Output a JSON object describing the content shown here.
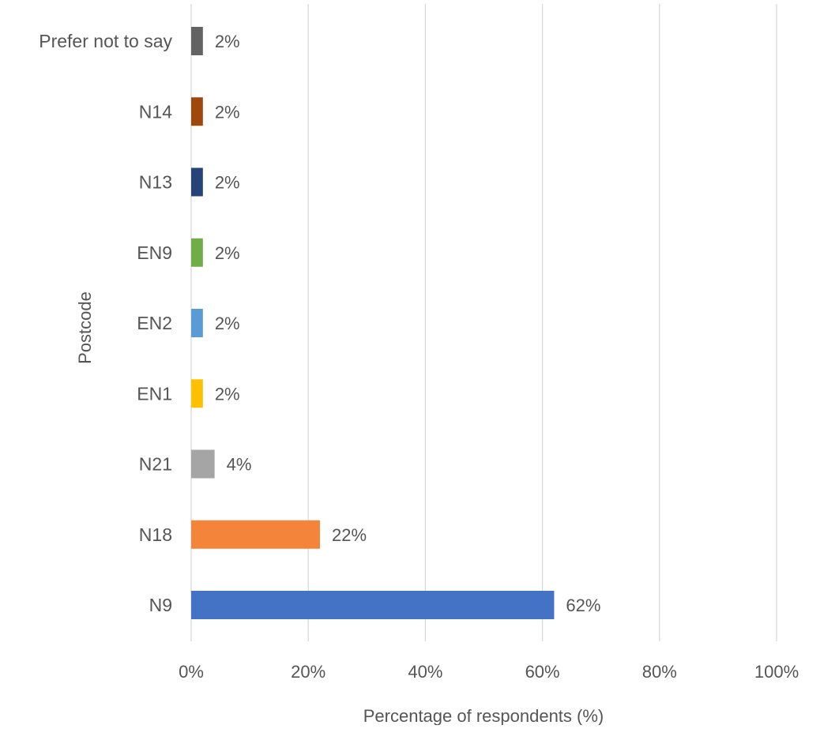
{
  "chart_data": {
    "type": "bar",
    "orientation": "horizontal",
    "title": "",
    "xlabel": "Percentage of respondents (%)",
    "ylabel": "Postcode",
    "xlim": [
      0,
      100
    ],
    "x_ticks": [
      "0%",
      "20%",
      "40%",
      "60%",
      "80%",
      "100%"
    ],
    "grid": true,
    "categories": [
      "N9",
      "N18",
      "N21",
      "EN1",
      "EN2",
      "EN9",
      "N13",
      "N14",
      "Prefer not to say"
    ],
    "values": [
      62,
      22,
      4,
      2,
      2,
      2,
      2,
      2,
      2
    ],
    "value_labels": [
      "62%",
      "22%",
      "4%",
      "2%",
      "2%",
      "2%",
      "2%",
      "2%",
      "2%"
    ],
    "colors": [
      "#4472C4",
      "#F4843A",
      "#A5A5A5",
      "#FFC000",
      "#5B9BD5",
      "#70AD47",
      "#264478",
      "#9E480E",
      "#636363"
    ]
  }
}
